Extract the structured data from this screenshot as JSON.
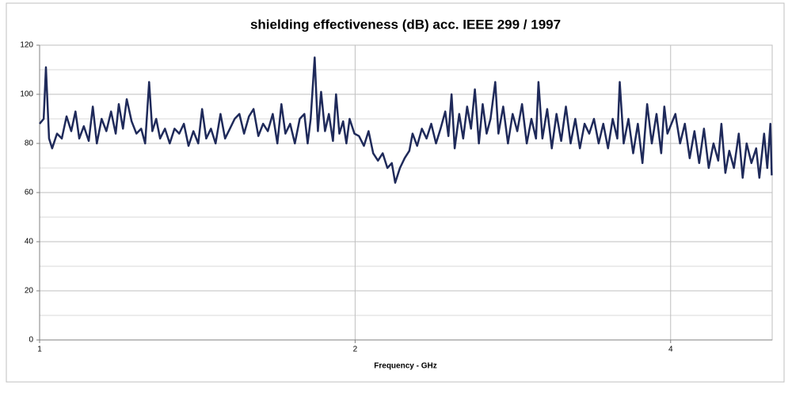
{
  "chart_data": {
    "type": "line",
    "title": "shielding effectiveness (dB) acc. IEEE 299 / 1997",
    "x_label": "Frequency - GHz",
    "x": [
      1.0,
      1.009,
      1.014,
      1.021,
      1.028,
      1.039,
      1.05,
      1.061,
      1.072,
      1.082,
      1.091,
      1.102,
      1.114,
      1.124,
      1.134,
      1.146,
      1.158,
      1.17,
      1.182,
      1.19,
      1.201,
      1.211,
      1.224,
      1.237,
      1.25,
      1.261,
      1.272,
      1.281,
      1.292,
      1.303,
      1.317,
      1.331,
      1.345,
      1.359,
      1.373,
      1.387,
      1.402,
      1.417,
      1.429,
      1.442,
      1.457,
      1.472,
      1.488,
      1.503,
      1.519,
      1.535,
      1.551,
      1.567,
      1.584,
      1.6,
      1.617,
      1.634,
      1.651,
      1.669,
      1.686,
      1.701,
      1.716,
      1.734,
      1.752,
      1.771,
      1.789,
      1.802,
      1.814,
      1.83,
      1.843,
      1.856,
      1.872,
      1.888,
      1.905,
      1.918,
      1.932,
      1.948,
      1.962,
      1.976,
      1.997,
      2.017,
      2.039,
      2.06,
      2.081,
      2.103,
      2.125,
      2.147,
      2.168,
      2.184,
      2.207,
      2.23,
      2.253,
      2.269,
      2.292,
      2.316,
      2.34,
      2.364,
      2.389,
      2.413,
      2.438,
      2.455,
      2.472,
      2.489,
      2.514,
      2.536,
      2.558,
      2.58,
      2.602,
      2.625,
      2.647,
      2.67,
      2.693,
      2.721,
      2.74,
      2.769,
      2.798,
      2.827,
      2.856,
      2.886,
      2.916,
      2.946,
      2.976,
      2.992,
      3.018,
      3.05,
      3.081,
      3.113,
      3.145,
      3.178,
      3.211,
      3.244,
      3.277,
      3.311,
      3.345,
      3.38,
      3.415,
      3.45,
      3.486,
      3.522,
      3.558,
      3.577,
      3.608,
      3.646,
      3.684,
      3.722,
      3.76,
      3.799,
      3.838,
      3.878,
      3.918,
      3.945,
      3.972,
      4.042,
      4.084,
      4.127,
      4.171,
      4.215,
      4.259,
      4.304,
      4.349,
      4.395,
      4.441,
      4.472,
      4.511,
      4.55,
      4.597,
      4.646,
      4.686,
      4.727,
      4.777,
      4.827,
      4.861,
      4.912,
      4.946,
      4.98,
      4.995
    ],
    "values": [
      88,
      90,
      111,
      82,
      78,
      84,
      82,
      91,
      85,
      93,
      82,
      87,
      81,
      95,
      80,
      90,
      85,
      93,
      84,
      96,
      86,
      98,
      89,
      84,
      86,
      80,
      105,
      85,
      90,
      82,
      86,
      80,
      86,
      84,
      88,
      79,
      85,
      80,
      94,
      82,
      86,
      80,
      92,
      82,
      86,
      90,
      92,
      84,
      91,
      94,
      83,
      88,
      85,
      92,
      80,
      96,
      84,
      88,
      80,
      90,
      92,
      80,
      90,
      115,
      85,
      101,
      85,
      92,
      81,
      100,
      84,
      89,
      80,
      90,
      84,
      83,
      79,
      85,
      76,
      73,
      76,
      70,
      72,
      64,
      70,
      74,
      77,
      84,
      79,
      86,
      82,
      88,
      80,
      86,
      93,
      83,
      100,
      78,
      92,
      82,
      95,
      86,
      102,
      80,
      96,
      84,
      90,
      105,
      84,
      95,
      80,
      92,
      85,
      96,
      80,
      90,
      82,
      105,
      82,
      94,
      78,
      92,
      81,
      95,
      80,
      90,
      78,
      88,
      84,
      90,
      80,
      88,
      78,
      90,
      82,
      105,
      80,
      90,
      76,
      88,
      72,
      96,
      80,
      92,
      76,
      95,
      84,
      92,
      80,
      88,
      74,
      85,
      72,
      86,
      70,
      80,
      73,
      88,
      68,
      77,
      70,
      84,
      66,
      80,
      72,
      78,
      66,
      84,
      70,
      88,
      67
    ],
    "color": "#1f2a5a",
    "xscale": "log",
    "xlim": [
      1,
      5
    ],
    "xticks": [
      1,
      2,
      4
    ],
    "ylim": [
      0,
      120
    ],
    "yticks": [
      0,
      20,
      40,
      60,
      80,
      100,
      120
    ],
    "yminor_ticks": [
      10,
      30,
      50,
      70,
      90,
      110
    ],
    "grid": true
  }
}
